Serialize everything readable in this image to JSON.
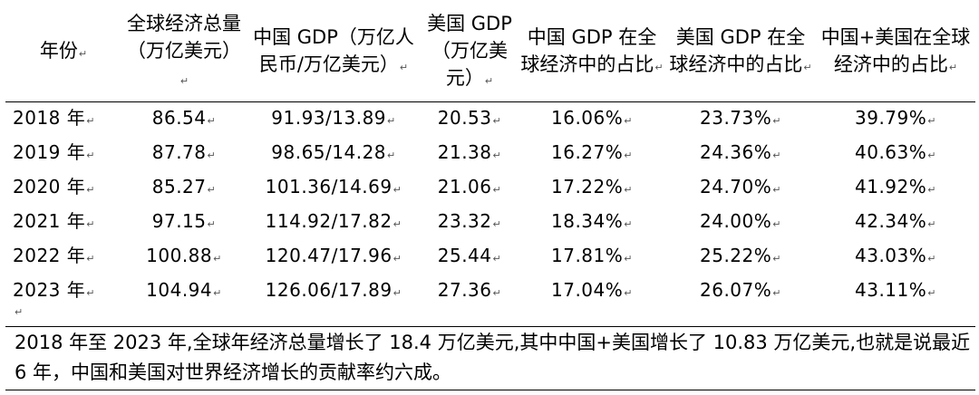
{
  "table": {
    "headers": [
      "年份",
      "全球经济总量（万亿美元）",
      "中国 GDP（万亿人民币/万亿美元）",
      "美国 GDP（万亿美元）",
      "中国 GDP 在全球经济中的占比",
      "美国 GDP 在全球经济中的占比",
      "中国+美国在全球经济中的占比"
    ],
    "rows": [
      [
        "2018 年",
        "86.54",
        "91.93/13.89",
        "20.53",
        "16.06%",
        "23.73%",
        "39.79%"
      ],
      [
        "2019 年",
        "87.78",
        "98.65/14.28",
        "21.38",
        "16.27%",
        "24.36%",
        "40.63%"
      ],
      [
        "2020 年",
        "85.27",
        "101.36/14.69",
        "21.06",
        "17.22%",
        "24.70%",
        "41.92%"
      ],
      [
        "2021 年",
        "97.15",
        "114.92/17.82",
        "23.32",
        "18.34%",
        "24.00%",
        "42.34%"
      ],
      [
        "2022 年",
        "100.88",
        "120.47/17.96",
        "25.44",
        "17.81%",
        "25.22%",
        "43.03%"
      ],
      [
        "2023 年",
        "104.94",
        "126.06/17.89",
        "27.36",
        "17.04%",
        "26.07%",
        "43.11%"
      ]
    ]
  },
  "paragraph": {
    "text": "2018 年至 2023 年,全球年经济总量增长了 18.4 万亿美元,其中中国+美国增长了 10.83 万亿美元,也就是说最近 6 年，中国和美国对世界经济增长的贡献率约六成。"
  },
  "marks": {
    "paragraph_mark": "↵"
  }
}
